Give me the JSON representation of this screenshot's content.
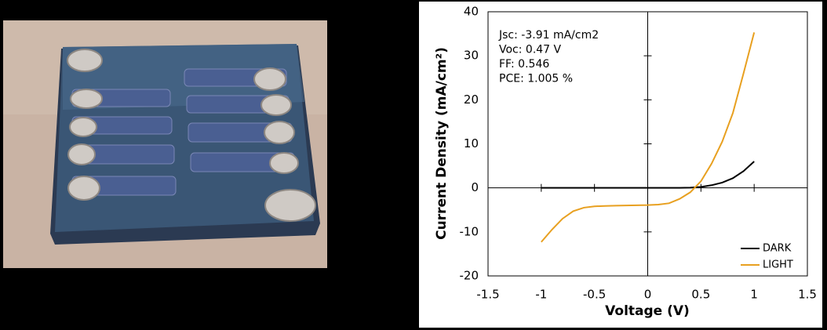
{
  "chart_data": {
    "type": "line",
    "xlabel": "Voltage (V)",
    "ylabel": "Current Density (mA/cm²)",
    "annotations": [
      "Jsc: -3.91 mA/cm2",
      "Voc: 0.47 V",
      "FF: 0.546",
      "PCE: 1.005 %"
    ],
    "x": [
      -1,
      -0.9,
      -0.8,
      -0.7,
      -0.6,
      -0.5,
      -0.4,
      -0.3,
      -0.2,
      -0.1,
      0,
      0.1,
      0.2,
      0.3,
      0.4,
      0.5,
      0.6,
      0.7,
      0.8,
      0.9,
      1
    ],
    "series": [
      {
        "name": "DARK",
        "color": "#000000",
        "values": [
          0,
          0,
          0,
          0,
          0,
          0,
          0,
          0,
          0,
          0,
          0,
          0,
          0,
          0,
          0.05,
          0.2,
          0.6,
          1.2,
          2.2,
          3.8,
          6.0
        ]
      },
      {
        "name": "LIGHT",
        "color": "#e8a020",
        "values": [
          -12.3,
          -9.5,
          -7,
          -5.3,
          -4.5,
          -4.2,
          -4.1,
          -4.05,
          -4,
          -3.95,
          -3.91,
          -3.8,
          -3.5,
          -2.5,
          -1,
          1.5,
          5.5,
          10.5,
          17,
          26,
          35.3
        ]
      }
    ],
    "xlim": [
      -1.5,
      1.5
    ],
    "xticks": [
      -1.5,
      -1,
      -0.5,
      0,
      0.5,
      1,
      1.5
    ],
    "ylim": [
      -20,
      40
    ],
    "yticks": [
      -20,
      -10,
      0,
      10,
      20,
      30,
      40
    ],
    "grid": false,
    "legend": "lower right"
  }
}
